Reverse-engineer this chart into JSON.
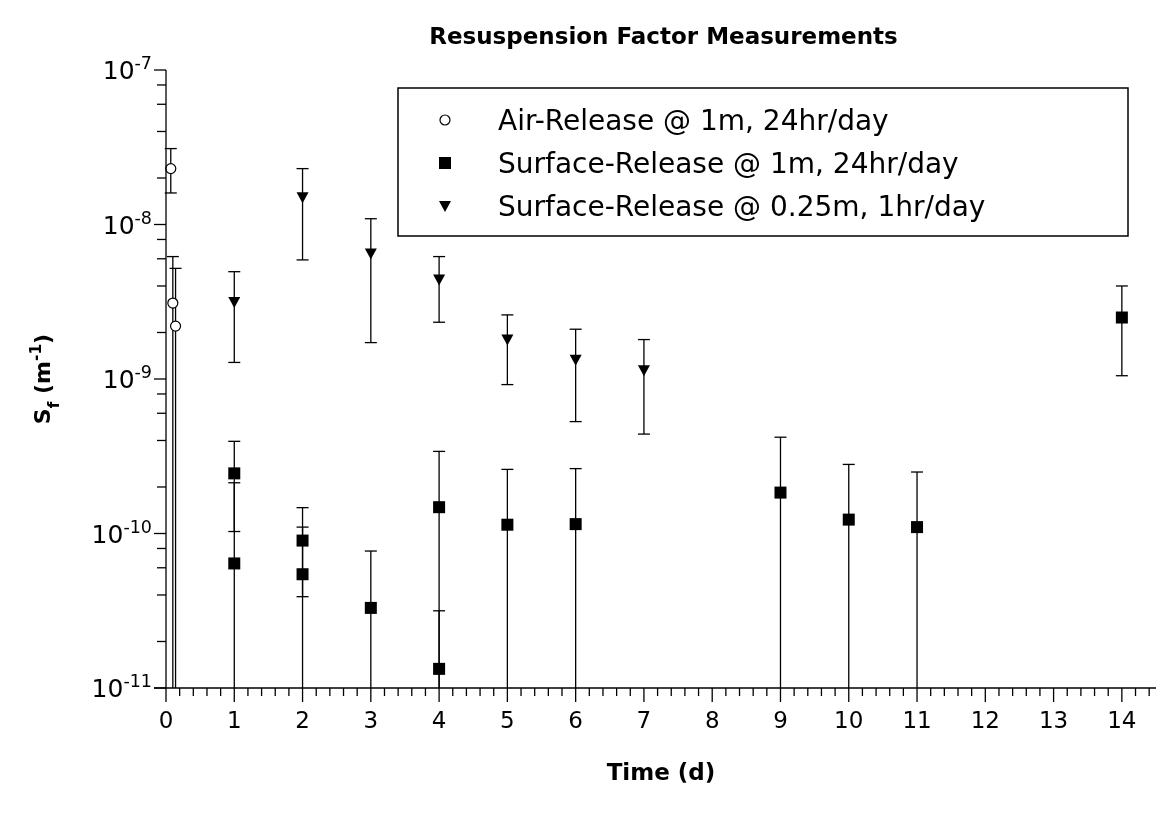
{
  "chart_data": {
    "type": "scatter",
    "title": "Resuspension Factor Measurements",
    "xlabel": "Time (d)",
    "ylabel": "S$_{f}$ (m$^{-1}$)",
    "log": "y",
    "legend": "top right",
    "xlim": [
      0,
      14.5
    ],
    "ylim": [
      1e-11,
      1e-07
    ],
    "xticks": [
      0,
      {
        "value": 0.2,
        "label": null
      },
      {
        "value": 0.4,
        "label": null
      },
      {
        "value": 0.6,
        "label": null
      },
      {
        "value": 0.8,
        "label": null
      },
      1,
      {
        "value": 1.2,
        "label": null
      },
      {
        "value": 1.4,
        "label": null
      },
      {
        "value": 1.6,
        "label": null
      },
      {
        "value": 1.8,
        "label": null
      },
      2,
      {
        "value": 2.2,
        "label": null
      },
      {
        "value": 2.4,
        "label": null
      },
      {
        "value": 2.6,
        "label": null
      },
      {
        "value": 2.8,
        "label": null
      },
      3,
      {
        "value": 3.2,
        "label": null
      },
      {
        "value": 3.4,
        "label": null
      },
      {
        "value": 3.6,
        "label": null
      },
      {
        "value": 3.8,
        "label": null
      },
      4,
      {
        "value": 4.2,
        "label": null
      },
      {
        "value": 4.4,
        "label": null
      },
      {
        "value": 4.6,
        "label": null
      },
      {
        "value": 4.8,
        "label": null
      },
      5,
      {
        "value": 5.2,
        "label": null
      },
      {
        "value": 5.4,
        "label": null
      },
      {
        "value": 5.6,
        "label": null
      },
      {
        "value": 5.8,
        "label": null
      },
      6,
      {
        "value": 6.2,
        "label": null
      },
      {
        "value": 6.4,
        "label": null
      },
      {
        "value": 6.6,
        "label": null
      },
      {
        "value": 6.8,
        "label": null
      },
      7,
      {
        "value": 7.2,
        "label": null
      },
      {
        "value": 7.4,
        "label": null
      },
      {
        "value": 7.6,
        "label": null
      },
      {
        "value": 7.8,
        "label": null
      },
      8,
      {
        "value": 8.2,
        "label": null
      },
      {
        "value": 8.4,
        "label": null
      },
      {
        "value": 8.6,
        "label": null
      },
      {
        "value": 8.8,
        "label": null
      },
      9,
      {
        "value": 9.2,
        "label": null
      },
      {
        "value": 9.4,
        "label": null
      },
      {
        "value": 9.6,
        "label": null
      },
      {
        "value": 9.8,
        "label": null
      },
      10,
      {
        "value": 10.2,
        "label": null
      },
      {
        "value": 10.4,
        "label": null
      },
      {
        "value": 10.6,
        "label": null
      },
      {
        "value": 10.8,
        "label": null
      },
      11,
      {
        "value": 11.2,
        "label": null
      },
      {
        "value": 11.4,
        "label": null
      },
      {
        "value": 11.6,
        "label": null
      },
      {
        "value": 11.8,
        "label": null
      },
      12,
      {
        "value": 12.2,
        "label": null
      },
      {
        "value": 12.4,
        "label": null
      },
      {
        "value": 12.6,
        "label": null
      },
      {
        "value": 12.8,
        "label": null
      },
      13,
      {
        "value": 13.2,
        "label": null
      },
      {
        "value": 13.4,
        "label": null
      },
      {
        "value": 13.6,
        "label": null
      },
      {
        "value": 13.8,
        "label": null
      },
      14,
      {
        "value": 14.2,
        "label": null
      },
      {
        "value": 14.4,
        "label": null
      }
    ],
    "yticks": [
      {
        "value": 1e-11,
        "label": "10$^{-11}$"
      },
      {
        "value": 2e-11,
        "label": null
      },
      {
        "value": 4e-11,
        "label": null
      },
      {
        "value": 6e-11,
        "label": null
      },
      {
        "value": 8e-11,
        "label": null
      },
      {
        "value": 1e-10,
        "label": "10$^{-10}$"
      },
      {
        "value": 2e-10,
        "label": null
      },
      {
        "value": 4e-10,
        "label": null
      },
      {
        "value": 6e-10,
        "label": null
      },
      {
        "value": 8e-10,
        "label": null
      },
      {
        "value": 1e-09,
        "label": "10$^{-9}$"
      },
      {
        "value": 2e-09,
        "label": null
      },
      {
        "value": 4e-09,
        "label": null
      },
      {
        "value": 6e-09,
        "label": null
      },
      {
        "value": 8e-09,
        "label": null
      },
      {
        "value": 1e-08,
        "label": "10$^{-8}$"
      },
      {
        "value": 2e-08,
        "label": null
      },
      {
        "value": 4e-08,
        "label": null
      },
      {
        "value": 6e-08,
        "label": null
      },
      {
        "value": 8e-08,
        "label": null
      },
      {
        "value": 1e-07,
        "label": "10$^{-7}$"
      }
    ],
    "series": [
      {
        "name": "Air-Release @ 1m, 24hr/day",
        "color": "#000000",
        "marker": "circle",
        "x": [
          0.07,
          0.1,
          0.14
        ],
        "values": [
          2.3e-08,
          3.1e-09,
          2.2e-09
        ],
        "errors": [
          [
            1.6e-08,
            3.1e-08
          ],
          [
            1e-11,
            6.2e-09
          ],
          [
            1e-11,
            5.2e-09
          ]
        ]
      },
      {
        "name": "Surface-Release @ 1m, 24hr/day",
        "color": "#000000",
        "marker": "square",
        "x": [
          1,
          1,
          2,
          2,
          3,
          4,
          4,
          5,
          6,
          9,
          10,
          11,
          14
        ],
        "values": [
          2.45e-10,
          6.4e-11,
          9e-11,
          5.45e-11,
          3.3e-11,
          1.48e-10,
          1.33e-11,
          1.14e-10,
          1.15e-10,
          1.84e-10,
          1.23e-10,
          1.1e-10,
          2.5e-09
        ],
        "errors": [
          [
            1.03e-10,
            3.95e-10
          ],
          [
            1e-11,
            2.13e-10
          ],
          [
            3.9e-11,
            1.47e-10
          ],
          [
            1e-11,
            1.1e-10
          ],
          [
            1e-11,
            7.7e-11
          ],
          [
            1e-11,
            3.4e-10
          ],
          [
            1e-11,
            3.16e-11
          ],
          [
            1e-11,
            2.6e-10
          ],
          [
            1e-11,
            2.63e-10
          ],
          [
            1e-11,
            4.2e-10
          ],
          [
            1e-11,
            2.8e-10
          ],
          [
            1e-11,
            2.5e-10
          ],
          [
            1.05e-09,
            4e-09
          ]
        ]
      },
      {
        "name": "Surface-Release @ 0.25m, 1hr/day",
        "color": "#000000",
        "marker": "triangle",
        "x": [
          1,
          2,
          3,
          4,
          5,
          6,
          7
        ],
        "values": [
          3.15e-09,
          1.5e-08,
          6.5e-09,
          4.4e-09,
          1.8e-09,
          1.33e-09,
          1.14e-09
        ],
        "errors": [
          [
            1.28e-09,
            4.95e-09
          ],
          [
            5.9e-09,
            2.3e-08
          ],
          [
            1.72e-09,
            1.09e-08
          ],
          [
            2.33e-09,
            6.2e-09
          ],
          [
            9.2e-10,
            2.6e-09
          ],
          [
            5.3e-10,
            2.1e-09
          ],
          [
            4.4e-10,
            1.8e-09
          ]
        ]
      }
    ]
  }
}
